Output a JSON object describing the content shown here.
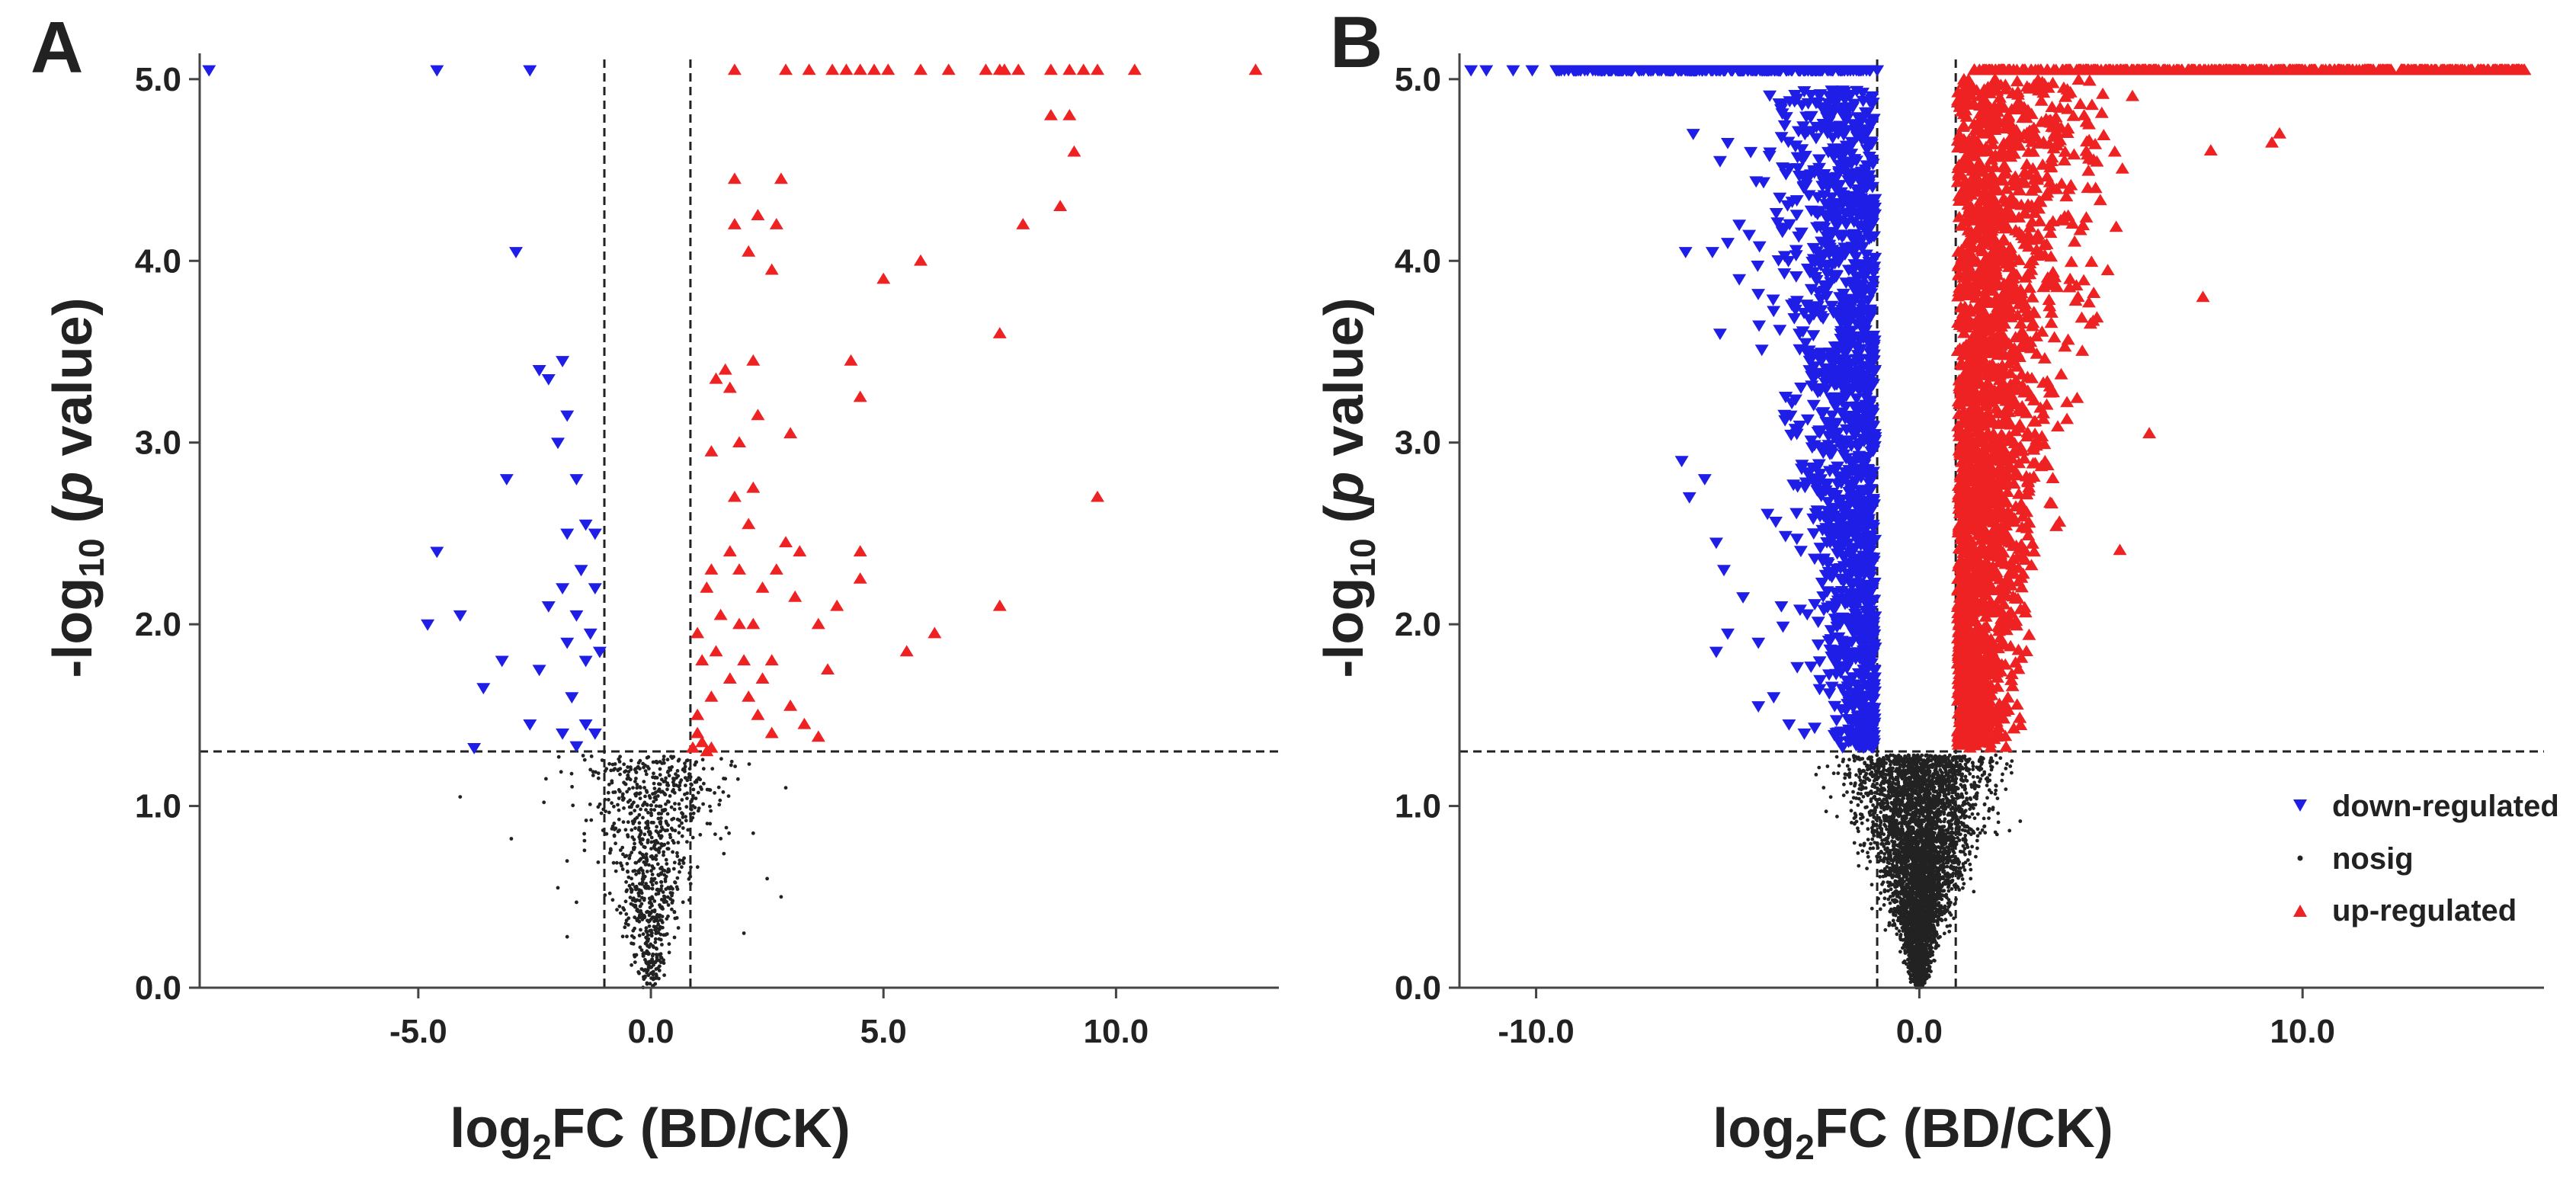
{
  "colors": {
    "down": "#1e1ee6",
    "up": "#ee2222",
    "nosig": "#222222",
    "axis": "#444444",
    "threshold": "#222222"
  },
  "chart_data": [
    {
      "type": "scatter",
      "panel": "A",
      "title": "",
      "xlabel": {
        "pre": "log",
        "sub": "2",
        "post": "FC (BD/CK)"
      },
      "ylabel": {
        "pre": "-log",
        "sub": "10",
        "mid": " (",
        "ital": "p",
        "post": " value)"
      },
      "xlim": [
        -9.7,
        13.5
      ],
      "ylim": [
        0,
        5.1
      ],
      "x_ticks": [
        -5,
        0,
        5,
        10
      ],
      "x_tick_labels": [
        "-5.0",
        "0.0",
        "5.0",
        "10.0"
      ],
      "y_ticks": [
        0,
        1,
        2,
        3,
        4,
        5
      ],
      "y_tick_labels": [
        "0.0",
        "1.0",
        "2.0",
        "3.0",
        "4.0",
        "5.0"
      ],
      "thresholds": {
        "x": [
          -1.0,
          0.85
        ],
        "y": 1.3
      },
      "grid": false,
      "series": [
        {
          "name": "down-regulated",
          "marker": "triangle-down",
          "points": [
            [
              -9.5,
              5.05
            ],
            [
              -4.6,
              5.05
            ],
            [
              -2.6,
              5.05
            ],
            [
              -2.9,
              4.05
            ],
            [
              -2.4,
              3.4
            ],
            [
              -2.2,
              3.35
            ],
            [
              -1.9,
              3.45
            ],
            [
              -1.8,
              3.15
            ],
            [
              -2.0,
              3.0
            ],
            [
              -1.6,
              2.8
            ],
            [
              -3.1,
              2.8
            ],
            [
              -1.4,
              2.55
            ],
            [
              -1.8,
              2.5
            ],
            [
              -1.2,
              2.5
            ],
            [
              -1.5,
              2.3
            ],
            [
              -1.9,
              2.2
            ],
            [
              -1.2,
              2.2
            ],
            [
              -2.2,
              2.1
            ],
            [
              -1.6,
              2.05
            ],
            [
              -1.3,
              1.95
            ],
            [
              -1.8,
              1.9
            ],
            [
              -1.1,
              1.85
            ],
            [
              -1.4,
              1.8
            ],
            [
              -4.6,
              2.4
            ],
            [
              -4.1,
              2.05
            ],
            [
              -4.8,
              2.0
            ],
            [
              -3.2,
              1.8
            ],
            [
              -3.6,
              1.65
            ],
            [
              -2.4,
              1.75
            ],
            [
              -1.7,
              1.6
            ],
            [
              -2.6,
              1.45
            ],
            [
              -1.4,
              1.45
            ],
            [
              -1.2,
              1.4
            ],
            [
              -1.9,
              1.4
            ],
            [
              -3.8,
              1.32
            ],
            [
              -1.6,
              1.33
            ]
          ]
        },
        {
          "name": "nosig",
          "marker": "dot",
          "points": []
        },
        {
          "name": "up-regulated",
          "marker": "triangle-up",
          "points": [
            [
              1.8,
              5.05
            ],
            [
              2.9,
              5.05
            ],
            [
              3.4,
              5.05
            ],
            [
              3.9,
              5.05
            ],
            [
              4.2,
              5.05
            ],
            [
              4.5,
              5.05
            ],
            [
              4.8,
              5.05
            ],
            [
              5.1,
              5.05
            ],
            [
              5.8,
              5.05
            ],
            [
              6.4,
              5.05
            ],
            [
              7.2,
              5.05
            ],
            [
              7.5,
              5.05
            ],
            [
              7.9,
              5.05
            ],
            [
              7.6,
              5.05
            ],
            [
              8.6,
              5.05
            ],
            [
              9.0,
              5.05
            ],
            [
              9.3,
              5.05
            ],
            [
              9.6,
              5.05
            ],
            [
              10.4,
              5.05
            ],
            [
              13.0,
              5.05
            ],
            [
              7.6,
              5.05
            ],
            [
              9.0,
              4.8
            ],
            [
              8.6,
              4.8
            ],
            [
              9.1,
              4.6
            ],
            [
              8.8,
              4.3
            ],
            [
              8.0,
              4.2
            ],
            [
              1.8,
              4.45
            ],
            [
              2.8,
              4.45
            ],
            [
              2.3,
              4.25
            ],
            [
              1.8,
              4.2
            ],
            [
              2.7,
              4.2
            ],
            [
              2.1,
              4.05
            ],
            [
              2.6,
              3.95
            ],
            [
              5.0,
              3.9
            ],
            [
              5.8,
              4.0
            ],
            [
              7.5,
              3.6
            ],
            [
              1.6,
              3.4
            ],
            [
              2.2,
              3.45
            ],
            [
              1.7,
              3.3
            ],
            [
              4.3,
              3.45
            ],
            [
              1.4,
              3.35
            ],
            [
              2.3,
              3.15
            ],
            [
              1.9,
              3.0
            ],
            [
              3.0,
              3.05
            ],
            [
              4.5,
              3.25
            ],
            [
              1.3,
              2.95
            ],
            [
              2.2,
              2.75
            ],
            [
              1.8,
              2.7
            ],
            [
              9.6,
              2.7
            ],
            [
              2.1,
              2.55
            ],
            [
              1.7,
              2.4
            ],
            [
              2.9,
              2.45
            ],
            [
              3.2,
              2.4
            ],
            [
              1.9,
              2.3
            ],
            [
              1.3,
              2.3
            ],
            [
              2.7,
              2.3
            ],
            [
              4.5,
              2.4
            ],
            [
              3.1,
              2.15
            ],
            [
              1.2,
              2.2
            ],
            [
              2.4,
              2.2
            ],
            [
              4.5,
              2.25
            ],
            [
              4.0,
              2.1
            ],
            [
              1.5,
              2.05
            ],
            [
              1.9,
              2.0
            ],
            [
              2.2,
              2.0
            ],
            [
              3.6,
              2.0
            ],
            [
              1.0,
              1.95
            ],
            [
              5.5,
              1.85
            ],
            [
              6.1,
              1.95
            ],
            [
              7.5,
              2.1
            ],
            [
              1.1,
              1.8
            ],
            [
              1.4,
              1.85
            ],
            [
              2.0,
              1.8
            ],
            [
              2.6,
              1.8
            ],
            [
              1.7,
              1.7
            ],
            [
              2.4,
              1.7
            ],
            [
              3.8,
              1.75
            ],
            [
              1.3,
              1.6
            ],
            [
              2.1,
              1.6
            ],
            [
              3.0,
              1.55
            ],
            [
              1.0,
              1.5
            ],
            [
              2.3,
              1.5
            ],
            [
              3.3,
              1.45
            ],
            [
              3.6,
              1.38
            ],
            [
              1.1,
              1.35
            ],
            [
              1.3,
              1.32
            ],
            [
              0.9,
              1.32
            ],
            [
              1.0,
              1.4
            ],
            [
              1.2,
              1.3
            ],
            [
              2.6,
              1.4
            ]
          ]
        }
      ]
    },
    {
      "type": "scatter",
      "panel": "B",
      "title": "",
      "xlabel": {
        "pre": "log",
        "sub": "2",
        "post": "FC (BD/CK)"
      },
      "ylabel": {
        "pre": "-log",
        "sub": "10",
        "mid": " (",
        "ital": "p",
        "post": " value)"
      },
      "xlim": [
        -12.0,
        16.3
      ],
      "ylim": [
        0,
        5.1
      ],
      "x_ticks": [
        -10,
        0,
        10
      ],
      "x_tick_labels": [
        "-10.0",
        "0.0",
        "10.0"
      ],
      "y_ticks": [
        0,
        1,
        2,
        3,
        4,
        5
      ],
      "y_tick_labels": [
        "0.0",
        "1.0",
        "2.0",
        "3.0",
        "4.0",
        "5.0"
      ],
      "thresholds": {
        "x": [
          -1.1,
          0.95
        ],
        "y": 1.3
      },
      "grid": false,
      "legend": {
        "position": "bottom-right",
        "entries": [
          {
            "label": "down-regulated",
            "marker": "triangle-down"
          },
          {
            "label": "nosig",
            "marker": "dot"
          },
          {
            "label": "up-regulated",
            "marker": "triangle-up"
          }
        ]
      },
      "series": [
        {
          "name": "down-regulated",
          "marker": "triangle-down",
          "points": [
            [
              -11.7,
              5.05
            ],
            [
              -11.3,
              5.05
            ],
            [
              -10.6,
              5.05
            ],
            [
              -10.1,
              5.05
            ],
            [
              -5.9,
              4.7
            ],
            [
              -5.2,
              4.55
            ],
            [
              -5.0,
              4.65
            ],
            [
              -4.4,
              4.6
            ],
            [
              -4.7,
              4.2
            ],
            [
              -5.0,
              4.1
            ],
            [
              -6.1,
              4.05
            ],
            [
              -5.4,
              4.05
            ],
            [
              -4.7,
              3.9
            ],
            [
              -5.2,
              3.6
            ],
            [
              -6.2,
              2.9
            ],
            [
              -5.6,
              2.8
            ],
            [
              -6.0,
              2.7
            ],
            [
              -5.3,
              2.45
            ],
            [
              -5.1,
              2.3
            ],
            [
              -4.6,
              2.15
            ],
            [
              -5.0,
              1.95
            ],
            [
              -5.3,
              1.85
            ],
            [
              -4.2,
              1.9
            ],
            [
              -3.8,
              1.6
            ],
            [
              -3.4,
              1.45
            ],
            [
              -3.0,
              1.4
            ],
            [
              -4.2,
              1.55
            ],
            [
              -3.6,
              2.1
            ]
          ]
        },
        {
          "name": "nosig",
          "marker": "dot",
          "points": []
        },
        {
          "name": "up-regulated",
          "marker": "triangle-up",
          "points": [
            [
              9.4,
              4.7
            ],
            [
              9.2,
              4.65
            ],
            [
              7.4,
              3.8
            ],
            [
              6.0,
              3.05
            ],
            [
              5.1,
              4.6
            ],
            [
              4.6,
              4.4
            ],
            [
              4.3,
              4.8
            ]
          ]
        }
      ]
    }
  ],
  "figure": {
    "legend_down": "down-regulated",
    "legend_nosig": "nosig",
    "legend_up": "up-regulated"
  }
}
